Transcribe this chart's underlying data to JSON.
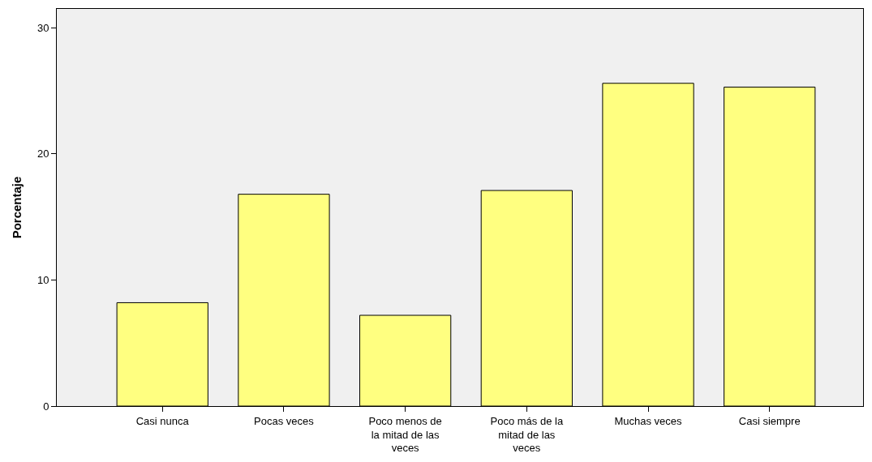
{
  "chart_data": {
    "type": "bar",
    "ylabel": "Porcentaje",
    "categories": [
      "Casi nunca",
      "Pocas veces",
      "Poco menos de la mitad de las veces",
      "Poco más de la mitad de las veces",
      "Muchas veces",
      "Casi siempre"
    ],
    "values": [
      8.2,
      16.8,
      7.2,
      17.1,
      25.6,
      25.3
    ],
    "color": "#ffff80",
    "ylim": [
      0,
      31.5
    ],
    "yticks": [
      0,
      10,
      20,
      30
    ],
    "grid": false,
    "legend": false
  }
}
